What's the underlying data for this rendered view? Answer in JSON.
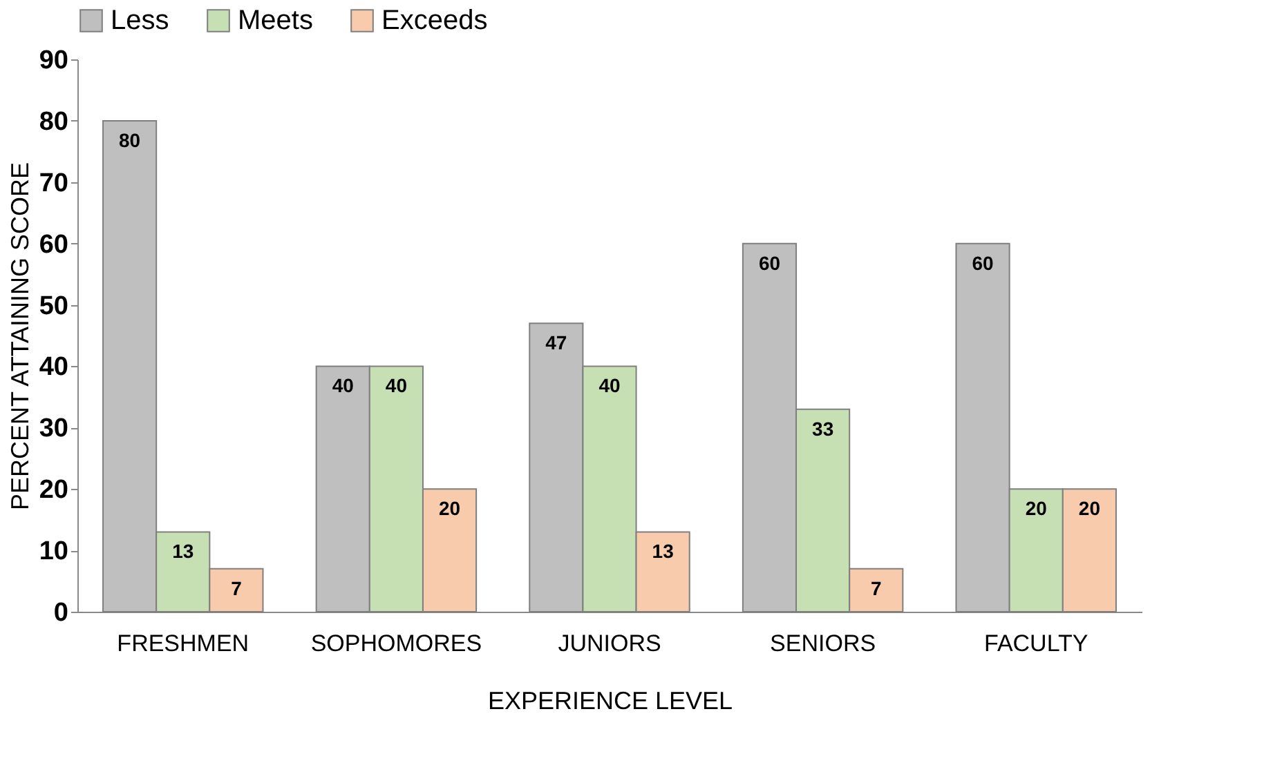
{
  "chart_data": {
    "type": "bar",
    "xlabel": "EXPERIENCE LEVEL",
    "ylabel": "PERCENT ATTAINING SCORE",
    "categories": [
      "FRESHMEN",
      "SOPHOMORES",
      "JUNIORS",
      "SENIORS",
      "FACULTY"
    ],
    "series": [
      {
        "name": "Less",
        "color": "#bfbfbf",
        "values": [
          80,
          40,
          47,
          60,
          60
        ]
      },
      {
        "name": "Meets",
        "color": "#c6e0b4",
        "values": [
          13,
          40,
          40,
          33,
          20
        ]
      },
      {
        "name": "Exceeds",
        "color": "#f8cbad",
        "values": [
          7,
          20,
          13,
          7,
          20
        ]
      }
    ],
    "ylim": [
      0,
      90
    ],
    "yticks": [
      0,
      10,
      20,
      30,
      40,
      50,
      60,
      70,
      80,
      90
    ],
    "grid": false,
    "legend": "top",
    "data_labels": true
  }
}
